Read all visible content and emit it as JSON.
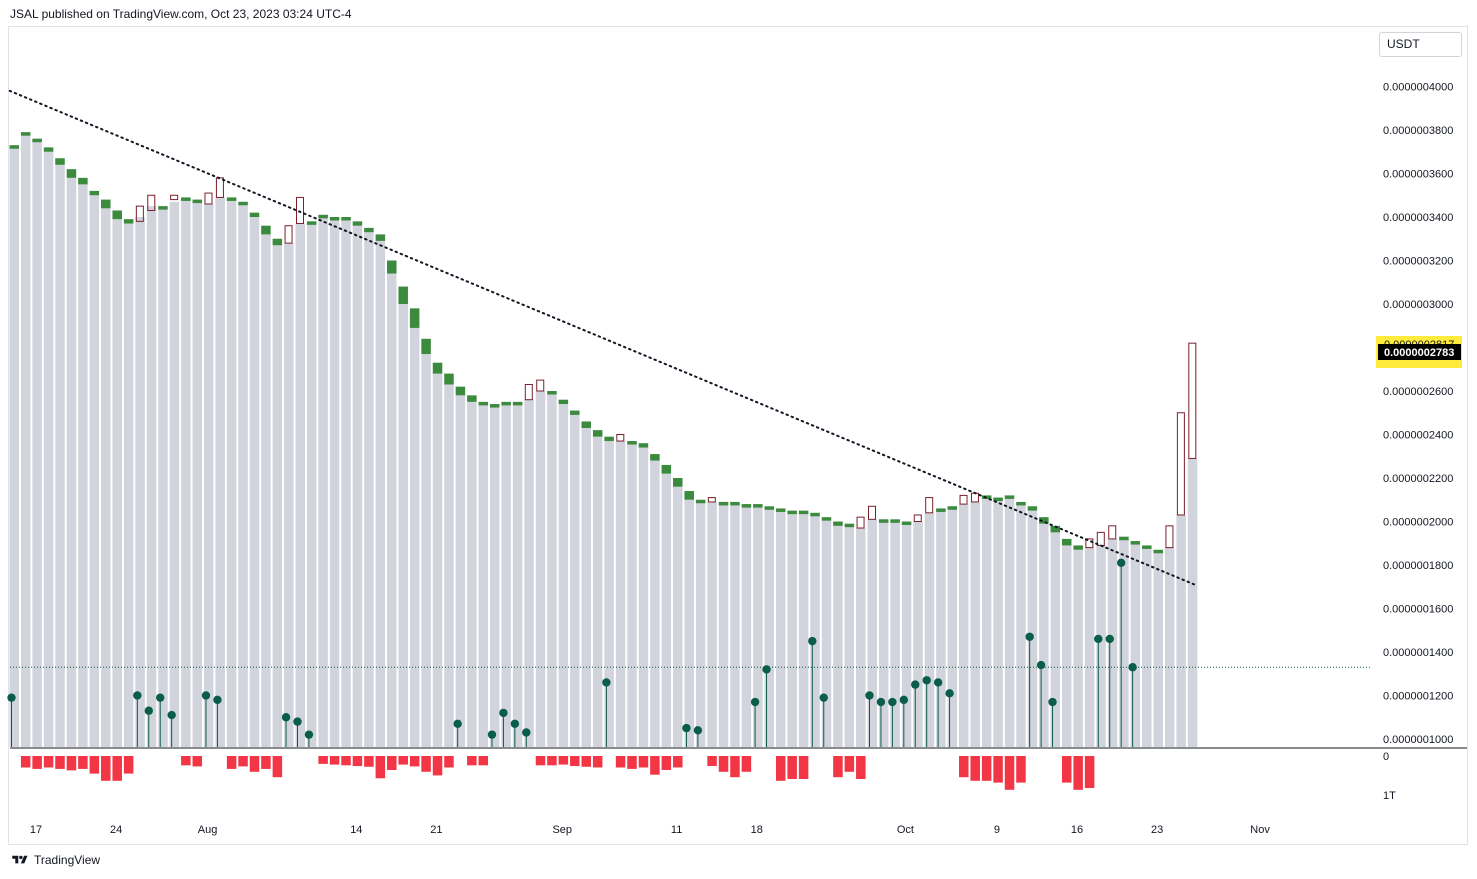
{
  "header": {
    "text": "JSAL published on TradingView.com, Oct 23, 2023 03:24 UTC-4"
  },
  "footer": {
    "brand": "TradingView",
    "logo_icon": "tradingview-logo-icon"
  },
  "price_scale": {
    "currency": "USDT"
  },
  "colors": {
    "up": "#3b8a3e",
    "down": "#7a1f2b",
    "volume": "#d1d4dc",
    "lower_bars": "#f23645",
    "dots": "#0b5d4b",
    "last_price_bg": "#ffeb3b"
  },
  "chart_data": {
    "type": "candlestick",
    "y_ticks": [
      "0.0000004000",
      "0.0000003800",
      "0.0000003600",
      "0.0000003400",
      "0.0000003200",
      "0.0000003000",
      "0.0000002600",
      "0.0000002400",
      "0.0000002200",
      "0.0000002000",
      "0.0000001800",
      "0.0000001600",
      "0.0000001400",
      "0.0000001200",
      "0.0000001000"
    ],
    "y_tick_values": [
      4e-07,
      3.8e-07,
      3.6e-07,
      3.4e-07,
      3.2e-07,
      3e-07,
      2.6e-07,
      2.4e-07,
      2.2e-07,
      2e-07,
      1.8e-07,
      1.6e-07,
      1.4e-07,
      1.2e-07,
      1e-07
    ],
    "ylim": [
      1e-07,
      4e-07
    ],
    "x_ticks": [
      {
        "label": "17",
        "day": 0
      },
      {
        "label": "24",
        "day": 7
      },
      {
        "label": "Aug",
        "day": 15
      },
      {
        "label": "14",
        "day": 28
      },
      {
        "label": "21",
        "day": 35
      },
      {
        "label": "Sep",
        "day": 46
      },
      {
        "label": "11",
        "day": 56
      },
      {
        "label": "18",
        "day": 63
      },
      {
        "label": "Oct",
        "day": 76
      },
      {
        "label": "9",
        "day": 84
      },
      {
        "label": "16",
        "day": 91
      },
      {
        "label": "23",
        "day": 98
      },
      {
        "label": "Nov",
        "day": 107
      }
    ],
    "last_price": {
      "label": "0.0000002783",
      "sub_label": "0.0000002817",
      "value": 2.783e-07
    },
    "lower_pane_labels": [
      "0",
      "1T"
    ],
    "trendline": {
      "start": {
        "day": -0.2,
        "value": 3.98e-07
      },
      "end": {
        "day": 103.6,
        "value": 1.705e-07
      },
      "style": "dotted"
    },
    "candles": [
      {
        "o": 3.73,
        "c": 3.73,
        "h": 3.73,
        "l": 3.73
      },
      {
        "o": 3.79,
        "c": 3.79,
        "h": 3.79,
        "l": 3.79
      },
      {
        "o": 3.76,
        "c": 3.76,
        "h": 3.76,
        "l": 3.76
      },
      {
        "o": 3.72,
        "c": 3.7,
        "h": 3.72,
        "l": 3.7
      },
      {
        "o": 3.67,
        "c": 3.64,
        "h": 3.67,
        "l": 3.64
      },
      {
        "o": 3.62,
        "c": 3.58,
        "h": 3.62,
        "l": 3.58
      },
      {
        "o": 3.58,
        "c": 3.55,
        "h": 3.58,
        "l": 3.55
      },
      {
        "o": 3.52,
        "c": 3.5,
        "h": 3.52,
        "l": 3.5
      },
      {
        "o": 3.48,
        "c": 3.44,
        "h": 3.48,
        "l": 3.44
      },
      {
        "o": 3.43,
        "c": 3.39,
        "h": 3.43,
        "l": 3.39
      },
      {
        "o": 3.39,
        "c": 3.37,
        "h": 3.39,
        "l": 3.37
      },
      {
        "o": 3.38,
        "c": 3.45,
        "h": 3.45,
        "l": 3.38
      },
      {
        "o": 3.43,
        "c": 3.5,
        "h": 3.5,
        "l": 3.42
      },
      {
        "o": 3.44,
        "c": 3.45,
        "h": 3.46,
        "l": 3.44
      },
      {
        "o": 3.48,
        "c": 3.5,
        "h": 3.5,
        "l": 3.47
      },
      {
        "o": 3.49,
        "c": 3.49,
        "h": 3.49,
        "l": 3.49
      },
      {
        "o": 3.48,
        "c": 3.48,
        "h": 3.48,
        "l": 3.48
      },
      {
        "o": 3.46,
        "c": 3.51,
        "h": 3.51,
        "l": 3.46
      },
      {
        "o": 3.49,
        "c": 3.58,
        "h": 3.58,
        "l": 3.49
      },
      {
        "o": 3.49,
        "c": 3.49,
        "h": 3.49,
        "l": 3.49
      },
      {
        "o": 3.47,
        "c": 3.46,
        "h": 3.47,
        "l": 3.46
      },
      {
        "o": 3.42,
        "c": 3.4,
        "h": 3.42,
        "l": 3.4
      },
      {
        "o": 3.36,
        "c": 3.32,
        "h": 3.36,
        "l": 3.32
      },
      {
        "o": 3.3,
        "c": 3.27,
        "h": 3.3,
        "l": 3.27
      },
      {
        "o": 3.28,
        "c": 3.36,
        "h": 3.36,
        "l": 3.28
      },
      {
        "o": 3.37,
        "c": 3.49,
        "h": 3.49,
        "l": 3.37
      },
      {
        "o": 3.38,
        "c": 3.38,
        "h": 3.38,
        "l": 3.38
      },
      {
        "o": 3.41,
        "c": 3.41,
        "h": 3.41,
        "l": 3.41
      },
      {
        "o": 3.4,
        "c": 3.4,
        "h": 3.4,
        "l": 3.4
      },
      {
        "o": 3.4,
        "c": 3.39,
        "h": 3.4,
        "l": 3.39
      },
      {
        "o": 3.38,
        "c": 3.36,
        "h": 3.38,
        "l": 3.36
      },
      {
        "o": 3.35,
        "c": 3.33,
        "h": 3.35,
        "l": 3.33
      },
      {
        "o": 3.32,
        "c": 3.29,
        "h": 3.32,
        "l": 3.29
      },
      {
        "o": 3.2,
        "c": 3.14,
        "h": 3.2,
        "l": 3.14
      },
      {
        "o": 3.08,
        "c": 3.0,
        "h": 3.08,
        "l": 3.0
      },
      {
        "o": 2.98,
        "c": 2.89,
        "h": 2.98,
        "l": 2.89
      },
      {
        "o": 2.84,
        "c": 2.77,
        "h": 2.84,
        "l": 2.77
      },
      {
        "o": 2.73,
        "c": 2.68,
        "h": 2.73,
        "l": 2.68
      },
      {
        "o": 2.68,
        "c": 2.63,
        "h": 2.68,
        "l": 2.63
      },
      {
        "o": 2.62,
        "c": 2.58,
        "h": 2.62,
        "l": 2.58
      },
      {
        "o": 2.58,
        "c": 2.55,
        "h": 2.58,
        "l": 2.55
      },
      {
        "o": 2.55,
        "c": 2.54,
        "h": 2.55,
        "l": 2.54
      },
      {
        "o": 2.54,
        "c": 2.53,
        "h": 2.54,
        "l": 2.53
      },
      {
        "o": 2.54,
        "c": 2.55,
        "h": 2.55,
        "l": 2.54
      },
      {
        "o": 2.54,
        "c": 2.55,
        "h": 2.55,
        "l": 2.54
      },
      {
        "o": 2.56,
        "c": 2.63,
        "h": 2.63,
        "l": 2.56
      },
      {
        "o": 2.6,
        "c": 2.65,
        "h": 2.65,
        "l": 2.6
      },
      {
        "o": 2.6,
        "c": 2.59,
        "h": 2.6,
        "l": 2.59
      },
      {
        "o": 2.56,
        "c": 2.54,
        "h": 2.56,
        "l": 2.54
      },
      {
        "o": 2.51,
        "c": 2.49,
        "h": 2.51,
        "l": 2.49
      },
      {
        "o": 2.46,
        "c": 2.43,
        "h": 2.46,
        "l": 2.43
      },
      {
        "o": 2.42,
        "c": 2.39,
        "h": 2.42,
        "l": 2.39
      },
      {
        "o": 2.39,
        "c": 2.37,
        "h": 2.39,
        "l": 2.37
      },
      {
        "o": 2.37,
        "c": 2.4,
        "h": 2.4,
        "l": 2.37
      },
      {
        "o": 2.37,
        "c": 2.36,
        "h": 2.37,
        "l": 2.36
      },
      {
        "o": 2.36,
        "c": 2.34,
        "h": 2.36,
        "l": 2.34
      },
      {
        "o": 2.31,
        "c": 2.28,
        "h": 2.31,
        "l": 2.28
      },
      {
        "o": 2.26,
        "c": 2.22,
        "h": 2.26,
        "l": 2.22
      },
      {
        "o": 2.2,
        "c": 2.16,
        "h": 2.2,
        "l": 2.16
      },
      {
        "o": 2.14,
        "c": 2.1,
        "h": 2.14,
        "l": 2.1
      },
      {
        "o": 2.1,
        "c": 2.09,
        "h": 2.1,
        "l": 2.09
      },
      {
        "o": 2.09,
        "c": 2.11,
        "h": 2.12,
        "l": 2.09
      },
      {
        "o": 2.09,
        "c": 2.09,
        "h": 2.09,
        "l": 2.09
      },
      {
        "o": 2.09,
        "c": 2.08,
        "h": 2.09,
        "l": 2.08
      },
      {
        "o": 2.08,
        "c": 2.08,
        "h": 2.08,
        "l": 2.08
      },
      {
        "o": 2.08,
        "c": 2.07,
        "h": 2.08,
        "l": 2.07
      },
      {
        "o": 2.07,
        "c": 2.06,
        "h": 2.07,
        "l": 2.06
      },
      {
        "o": 2.06,
        "c": 2.05,
        "h": 2.06,
        "l": 2.05
      },
      {
        "o": 2.05,
        "c": 2.04,
        "h": 2.05,
        "l": 2.04
      },
      {
        "o": 2.04,
        "c": 2.05,
        "h": 2.05,
        "l": 2.04
      },
      {
        "o": 2.04,
        "c": 2.03,
        "h": 2.04,
        "l": 2.03
      },
      {
        "o": 2.02,
        "c": 2.01,
        "h": 2.02,
        "l": 2.01
      },
      {
        "o": 2.0,
        "c": 1.98,
        "h": 2.0,
        "l": 1.98
      },
      {
        "o": 1.99,
        "c": 1.98,
        "h": 1.99,
        "l": 1.98
      },
      {
        "o": 1.97,
        "c": 2.02,
        "h": 2.02,
        "l": 1.97
      },
      {
        "o": 2.01,
        "c": 2.07,
        "h": 2.07,
        "l": 2.01
      },
      {
        "o": 2.01,
        "c": 2.01,
        "h": 2.01,
        "l": 2.01
      },
      {
        "o": 2.01,
        "c": 2.0,
        "h": 2.01,
        "l": 2.0
      },
      {
        "o": 2.0,
        "c": 2.0,
        "h": 2.0,
        "l": 2.0
      },
      {
        "o": 2.0,
        "c": 2.03,
        "h": 2.03,
        "l": 2.0
      },
      {
        "o": 2.04,
        "c": 2.11,
        "h": 2.11,
        "l": 2.04
      },
      {
        "o": 2.06,
        "c": 2.06,
        "h": 2.06,
        "l": 2.06
      },
      {
        "o": 2.07,
        "c": 2.07,
        "h": 2.07,
        "l": 2.07
      },
      {
        "o": 2.08,
        "c": 2.12,
        "h": 2.12,
        "l": 2.08
      },
      {
        "o": 2.09,
        "c": 2.13,
        "h": 2.13,
        "l": 2.09
      },
      {
        "o": 2.11,
        "c": 2.12,
        "h": 2.12,
        "l": 2.11
      },
      {
        "o": 2.11,
        "c": 2.11,
        "h": 2.11,
        "l": 2.11
      },
      {
        "o": 2.12,
        "c": 2.11,
        "h": 2.12,
        "l": 2.11
      },
      {
        "o": 2.09,
        "c": 2.08,
        "h": 2.09,
        "l": 2.08
      },
      {
        "o": 2.07,
        "c": 2.05,
        "h": 2.07,
        "l": 2.05
      },
      {
        "o": 2.02,
        "c": 1.99,
        "h": 2.02,
        "l": 1.99
      },
      {
        "o": 1.98,
        "c": 1.95,
        "h": 1.98,
        "l": 1.95
      },
      {
        "o": 1.92,
        "c": 1.89,
        "h": 1.92,
        "l": 1.89
      },
      {
        "o": 1.89,
        "c": 1.87,
        "h": 1.89,
        "l": 1.87
      },
      {
        "o": 1.88,
        "c": 1.92,
        "h": 1.92,
        "l": 1.88
      },
      {
        "o": 1.89,
        "c": 1.95,
        "h": 1.95,
        "l": 1.89
      },
      {
        "o": 1.92,
        "c": 1.98,
        "h": 1.98,
        "l": 1.92
      },
      {
        "o": 1.93,
        "c": 1.93,
        "h": 1.93,
        "l": 1.93
      },
      {
        "o": 1.91,
        "c": 1.91,
        "h": 1.91,
        "l": 1.91
      },
      {
        "o": 1.89,
        "c": 1.88,
        "h": 1.89,
        "l": 1.88
      },
      {
        "o": 1.87,
        "c": 1.86,
        "h": 1.87,
        "l": 1.86
      },
      {
        "o": 1.88,
        "c": 1.98,
        "h": 1.98,
        "l": 1.88
      },
      {
        "o": 2.03,
        "c": 2.5,
        "h": 2.5,
        "l": 2.03
      },
      {
        "o": 2.29,
        "c": 2.82,
        "h": 2.82,
        "l": 2.29
      }
    ],
    "volume_tops": [
      3.73,
      3.79,
      3.76,
      3.7,
      3.64,
      3.58,
      3.55,
      3.5,
      3.44,
      3.39,
      3.37,
      3.4,
      3.45,
      3.44,
      3.47,
      3.49,
      3.48,
      3.46,
      3.49,
      3.49,
      3.46,
      3.4,
      3.32,
      3.27,
      3.28,
      3.37,
      3.38,
      3.41,
      3.4,
      3.39,
      3.36,
      3.33,
      3.29,
      3.14,
      3.0,
      2.89,
      2.77,
      2.68,
      2.63,
      2.58,
      2.55,
      2.54,
      2.53,
      2.54,
      2.54,
      2.56,
      2.6,
      2.59,
      2.54,
      2.49,
      2.43,
      2.39,
      2.37,
      2.37,
      2.36,
      2.34,
      2.28,
      2.22,
      2.16,
      2.1,
      2.09,
      2.09,
      2.09,
      2.08,
      2.08,
      2.07,
      2.06,
      2.05,
      2.04,
      2.04,
      2.03,
      2.01,
      1.98,
      1.98,
      1.97,
      2.01,
      2.01,
      2.0,
      2.0,
      2.0,
      2.04,
      2.06,
      2.07,
      2.08,
      2.09,
      2.11,
      2.11,
      2.11,
      2.08,
      2.05,
      1.99,
      1.95,
      1.89,
      1.87,
      1.88,
      1.89,
      1.92,
      1.93,
      1.91,
      1.88,
      1.86,
      1.88,
      2.03,
      2.29
    ],
    "dots": [
      {
        "i": 0,
        "v": 1.19
      },
      {
        "i": 11,
        "v": 1.2
      },
      {
        "i": 12,
        "v": 1.13
      },
      {
        "i": 13,
        "v": 1.19
      },
      {
        "i": 14,
        "v": 1.11
      },
      {
        "i": 17,
        "v": 1.2
      },
      {
        "i": 18,
        "v": 1.18
      },
      {
        "i": 24,
        "v": 1.1
      },
      {
        "i": 25,
        "v": 1.08
      },
      {
        "i": 26,
        "v": 1.02
      },
      {
        "i": 39,
        "v": 1.07
      },
      {
        "i": 42,
        "v": 1.02
      },
      {
        "i": 43,
        "v": 1.12
      },
      {
        "i": 44,
        "v": 1.07
      },
      {
        "i": 45,
        "v": 1.03
      },
      {
        "i": 52,
        "v": 1.26
      },
      {
        "i": 59,
        "v": 1.05
      },
      {
        "i": 60,
        "v": 1.04
      },
      {
        "i": 65,
        "v": 1.17
      },
      {
        "i": 66,
        "v": 1.32
      },
      {
        "i": 70,
        "v": 1.45
      },
      {
        "i": 71,
        "v": 1.19
      },
      {
        "i": 75,
        "v": 1.2
      },
      {
        "i": 76,
        "v": 1.17
      },
      {
        "i": 77,
        "v": 1.17
      },
      {
        "i": 78,
        "v": 1.18
      },
      {
        "i": 79,
        "v": 1.25
      },
      {
        "i": 80,
        "v": 1.27
      },
      {
        "i": 81,
        "v": 1.26
      },
      {
        "i": 82,
        "v": 1.21
      },
      {
        "i": 89,
        "v": 1.47
      },
      {
        "i": 90,
        "v": 1.34
      },
      {
        "i": 91,
        "v": 1.17
      },
      {
        "i": 95,
        "v": 1.46
      },
      {
        "i": 96,
        "v": 1.46
      },
      {
        "i": 97,
        "v": 1.81
      },
      {
        "i": 98,
        "v": 1.33
      }
    ],
    "lower_bars": [
      {
        "i": 1,
        "v": 0.18
      },
      {
        "i": 2,
        "v": 0.22
      },
      {
        "i": 3,
        "v": 0.18
      },
      {
        "i": 4,
        "v": 0.22
      },
      {
        "i": 5,
        "v": 0.26
      },
      {
        "i": 6,
        "v": 0.22
      },
      {
        "i": 7,
        "v": 0.35
      },
      {
        "i": 8,
        "v": 0.55
      },
      {
        "i": 9,
        "v": 0.55
      },
      {
        "i": 10,
        "v": 0.35
      },
      {
        "i": 15,
        "v": 0.12
      },
      {
        "i": 16,
        "v": 0.15
      },
      {
        "i": 19,
        "v": 0.22
      },
      {
        "i": 20,
        "v": 0.15
      },
      {
        "i": 21,
        "v": 0.3
      },
      {
        "i": 22,
        "v": 0.22
      },
      {
        "i": 23,
        "v": 0.45
      },
      {
        "i": 27,
        "v": 0.08
      },
      {
        "i": 28,
        "v": 0.1
      },
      {
        "i": 29,
        "v": 0.12
      },
      {
        "i": 30,
        "v": 0.14
      },
      {
        "i": 31,
        "v": 0.16
      },
      {
        "i": 32,
        "v": 0.48
      },
      {
        "i": 33,
        "v": 0.25
      },
      {
        "i": 34,
        "v": 0.1
      },
      {
        "i": 35,
        "v": 0.15
      },
      {
        "i": 36,
        "v": 0.3
      },
      {
        "i": 37,
        "v": 0.4
      },
      {
        "i": 38,
        "v": 0.18
      },
      {
        "i": 40,
        "v": 0.12
      },
      {
        "i": 41,
        "v": 0.12
      },
      {
        "i": 46,
        "v": 0.12
      },
      {
        "i": 47,
        "v": 0.12
      },
      {
        "i": 48,
        "v": 0.1
      },
      {
        "i": 49,
        "v": 0.14
      },
      {
        "i": 50,
        "v": 0.16
      },
      {
        "i": 51,
        "v": 0.18
      },
      {
        "i": 53,
        "v": 0.18
      },
      {
        "i": 54,
        "v": 0.22
      },
      {
        "i": 55,
        "v": 0.18
      },
      {
        "i": 56,
        "v": 0.38
      },
      {
        "i": 57,
        "v": 0.25
      },
      {
        "i": 58,
        "v": 0.18
      },
      {
        "i": 61,
        "v": 0.14
      },
      {
        "i": 62,
        "v": 0.3
      },
      {
        "i": 63,
        "v": 0.45
      },
      {
        "i": 64,
        "v": 0.3
      },
      {
        "i": 67,
        "v": 0.55
      },
      {
        "i": 68,
        "v": 0.5
      },
      {
        "i": 69,
        "v": 0.5
      },
      {
        "i": 72,
        "v": 0.45
      },
      {
        "i": 73,
        "v": 0.3
      },
      {
        "i": 74,
        "v": 0.5
      },
      {
        "i": 83,
        "v": 0.45
      },
      {
        "i": 84,
        "v": 0.55
      },
      {
        "i": 85,
        "v": 0.55
      },
      {
        "i": 86,
        "v": 0.6
      },
      {
        "i": 87,
        "v": 0.8
      },
      {
        "i": 88,
        "v": 0.6
      },
      {
        "i": 92,
        "v": 0.6
      },
      {
        "i": 93,
        "v": 0.8
      },
      {
        "i": 94,
        "v": 0.75
      }
    ],
    "reference_line": {
      "value": 1.33
    }
  }
}
